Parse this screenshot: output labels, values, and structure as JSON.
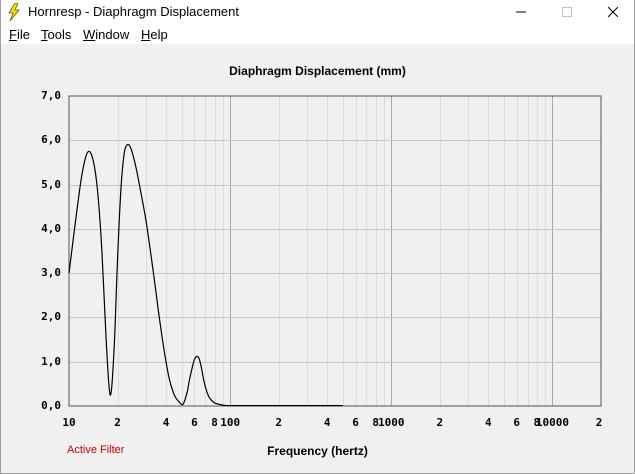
{
  "window": {
    "title": "Hornresp - Diaphragm Displacement",
    "icon": "lightning-icon"
  },
  "menu": [
    {
      "underline": "F",
      "rest": "ile"
    },
    {
      "underline": "T",
      "rest": "ools"
    },
    {
      "underline": "W",
      "rest": "indow"
    },
    {
      "underline": "H",
      "rest": "elp"
    }
  ],
  "status": {
    "filter_label": "Active Filter",
    "filter_color": "#cc0000"
  },
  "chart_data": {
    "type": "line",
    "title": "Diaphragm Displacement (mm)",
    "xlabel": "Frequency (hertz)",
    "ylabel": "",
    "xscale": "log",
    "xlim": [
      10,
      20000
    ],
    "ylim": [
      0,
      7
    ],
    "grid": true,
    "y_ticks": [
      "0,0",
      "1,0",
      "2,0",
      "3,0",
      "4,0",
      "5,0",
      "6,0",
      "7,0"
    ],
    "x_ticks": [
      {
        "value": 10,
        "label": "10"
      },
      {
        "value": 20,
        "label": "2"
      },
      {
        "value": 40,
        "label": "4"
      },
      {
        "value": 60,
        "label": "6"
      },
      {
        "value": 80,
        "label": "8"
      },
      {
        "value": 100,
        "label": "100"
      },
      {
        "value": 200,
        "label": "2"
      },
      {
        "value": 400,
        "label": "4"
      },
      {
        "value": 600,
        "label": "6"
      },
      {
        "value": 800,
        "label": "8"
      },
      {
        "value": 1000,
        "label": "1000"
      },
      {
        "value": 2000,
        "label": "2"
      },
      {
        "value": 4000,
        "label": "4"
      },
      {
        "value": 6000,
        "label": "6"
      },
      {
        "value": 8000,
        "label": "8"
      },
      {
        "value": 10000,
        "label": "10000"
      },
      {
        "value": 20000,
        "label": "2"
      }
    ],
    "series": [
      {
        "color": "#000000",
        "x": [
          10,
          11,
          12,
          13,
          14,
          15,
          16,
          17,
          18,
          19,
          20,
          21,
          22,
          23,
          24,
          25,
          26,
          27,
          28,
          30,
          32,
          34,
          36,
          38,
          40,
          42,
          45,
          48,
          51,
          54,
          55,
          56,
          58,
          60,
          62,
          64,
          66,
          68,
          70,
          72,
          74,
          76,
          78,
          80,
          85,
          90,
          95,
          100,
          110,
          120,
          150,
          200,
          300,
          400,
          500
        ],
        "y": [
          3.0,
          4.2,
          5.2,
          5.72,
          5.6,
          4.9,
          3.5,
          1.5,
          0.25,
          1.2,
          3.3,
          4.9,
          5.7,
          5.9,
          5.85,
          5.65,
          5.4,
          5.1,
          4.8,
          4.2,
          3.5,
          2.8,
          2.1,
          1.5,
          1.0,
          0.6,
          0.25,
          0.1,
          0.04,
          0.3,
          0.45,
          0.6,
          0.85,
          1.05,
          1.12,
          1.08,
          0.9,
          0.65,
          0.45,
          0.3,
          0.2,
          0.14,
          0.1,
          0.07,
          0.04,
          0.02,
          0.01,
          0.01,
          0.01,
          0.01,
          0.01,
          0.01,
          0.01,
          0.01,
          0.01
        ]
      }
    ]
  }
}
